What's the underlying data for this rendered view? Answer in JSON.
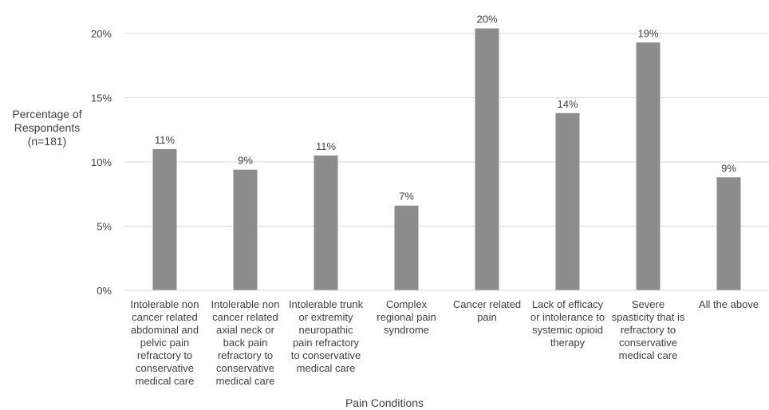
{
  "chart_data": {
    "type": "bar",
    "xlabel": "Pain Conditions",
    "ylabel": "Percentage of\nRespondents\n(n=181)",
    "ylim": [
      0,
      0.22
    ],
    "yticks": [
      0,
      0.05,
      0.1,
      0.15,
      0.2
    ],
    "ytick_labels": [
      "0%",
      "5%",
      "10%",
      "15%",
      "20%"
    ],
    "grid": true,
    "bar_color": "#8c8c8c",
    "grid_color": "#d9d9d9",
    "categories": [
      "Intolerable non\ncancer related\nabdominal and\npelvic pain\nrefractory to\nconservative\nmedical care",
      "Intolerable non\ncancer related\naxial neck or\nback pain\nrefractory to\nconservative\nmedical care",
      "Intolerable trunk\nor extremity\nneuropathic\npain refractory\nto conservative\nmedical care",
      "Complex\nregional pain\nsyndrome",
      "Cancer related\npain",
      "Lack of efficacy\nor intolerance to\nsystemic opioid\ntherapy",
      "Severe\nspasticity that is\nrefractory to\nconservative\nmedical care",
      "All the above"
    ],
    "values": [
      0.11,
      0.094,
      0.105,
      0.066,
      0.204,
      0.138,
      0.193,
      0.088
    ],
    "data_labels": [
      "11%",
      "9%",
      "11%",
      "7%",
      "20%",
      "14%",
      "19%",
      "9%"
    ]
  }
}
